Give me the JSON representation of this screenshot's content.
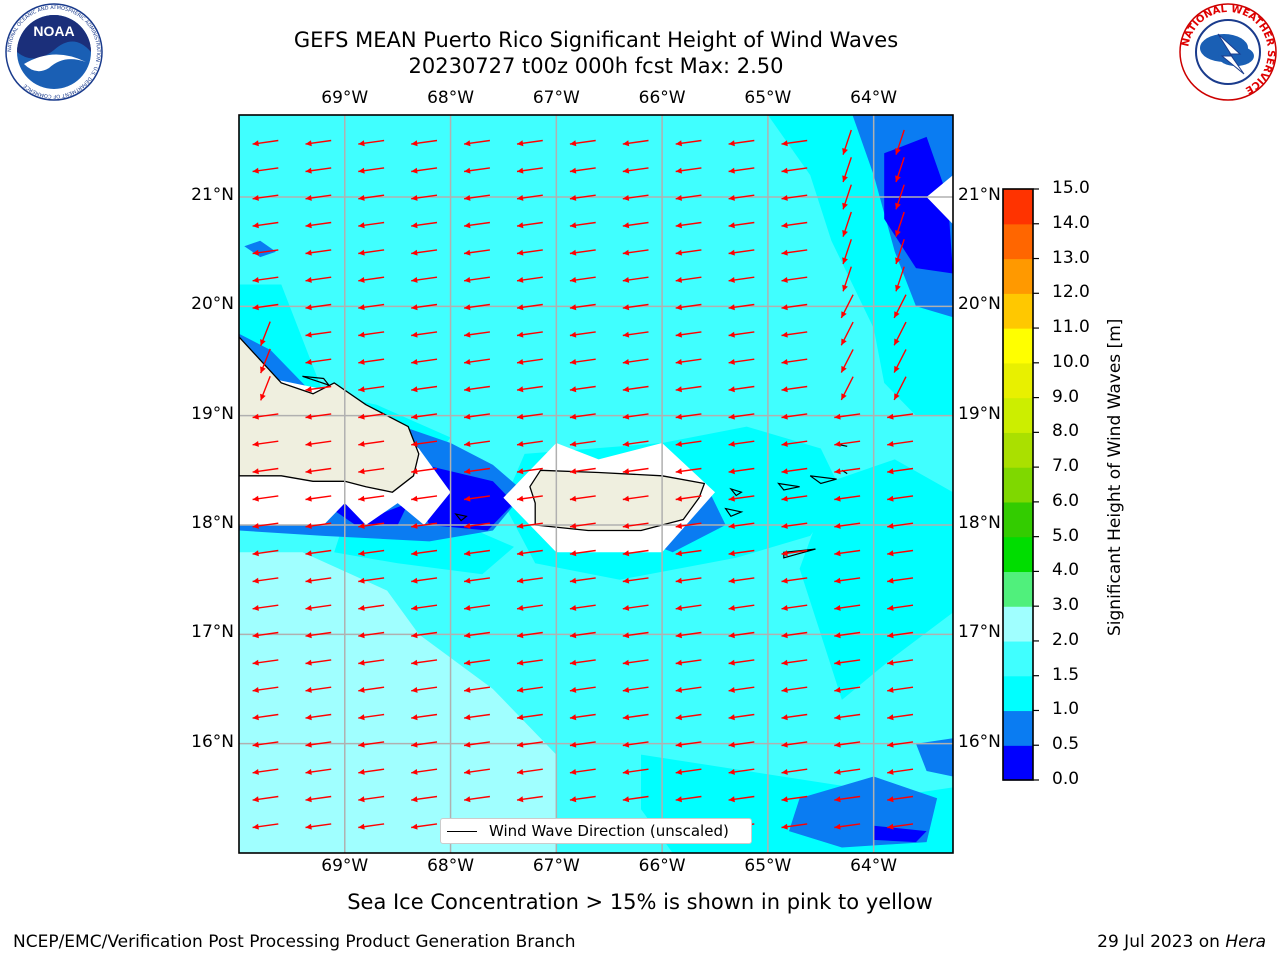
{
  "title": {
    "line1": "GEFS MEAN Puerto Rico Significant Height of Wind Waves",
    "line2": "20230727 t00z 000h fcst   Max: 2.50"
  },
  "chart_data": {
    "type": "heatmap",
    "variable": "Significant Height of Wind Waves",
    "unit": "m",
    "max_value": 2.5,
    "lon_range": [
      -70.0,
      -63.25
    ],
    "lat_range": [
      15.0,
      21.75
    ],
    "lon_ticks": [
      "69°W",
      "68°W",
      "67°W",
      "66°W",
      "65°W",
      "64°W"
    ],
    "lat_ticks": [
      "21°N",
      "20°N",
      "19°N",
      "18°N",
      "17°N",
      "16°N"
    ],
    "grid": true,
    "wind_wave_direction_toward": "west",
    "colorbar": {
      "label": "Significant Height of Wind Waves [m]",
      "levels": [
        0.0,
        0.5,
        1.0,
        1.5,
        2.0,
        3.0,
        4.0,
        5.0,
        6.0,
        7.0,
        8.0,
        9.0,
        10.0,
        11.0,
        12.0,
        13.0,
        14.0,
        15.0
      ],
      "tick_labels": [
        "0.0",
        "0.5",
        "1.0",
        "1.5",
        "2.0",
        "3.0",
        "4.0",
        "5.0",
        "6.0",
        "7.0",
        "8.0",
        "9.0",
        "10.0",
        "11.0",
        "12.0",
        "13.0",
        "14.0",
        "15.0"
      ],
      "colors": [
        "#0000ff",
        "#0a7cf2",
        "#00ffff",
        "#40ffff",
        "#a0ffff",
        "#50f07c",
        "#00dd00",
        "#33cc00",
        "#7fd800",
        "#aae000",
        "#ccee00",
        "#e8f000",
        "#ffff00",
        "#ffc800",
        "#ff9900",
        "#ff6600",
        "#ff3300",
        "#ff0000"
      ]
    },
    "legend": {
      "label": "Wind Wave Direction (unscaled)",
      "position": "bottom-center"
    }
  },
  "colors": {
    "land": "#efefdf",
    "arrow": "#ff0000",
    "grid": "#b0b0b0"
  },
  "note": "Sea Ice Concentration > 15% is shown in pink to yellow",
  "footer": {
    "left": "NCEP/EMC/Verification Post Processing Product Generation Branch",
    "date": "29 Jul 2023 on ",
    "machine": "Hera"
  },
  "logos": {
    "left_text": "NOAA",
    "left_ring_text": "NATIONAL OCEANIC AND ATMOSPHERIC ADMINISTRATION · U.S. DEPARTMENT OF COMMERCE",
    "right_ring_text": "NATIONAL WEATHER SERVICE"
  }
}
